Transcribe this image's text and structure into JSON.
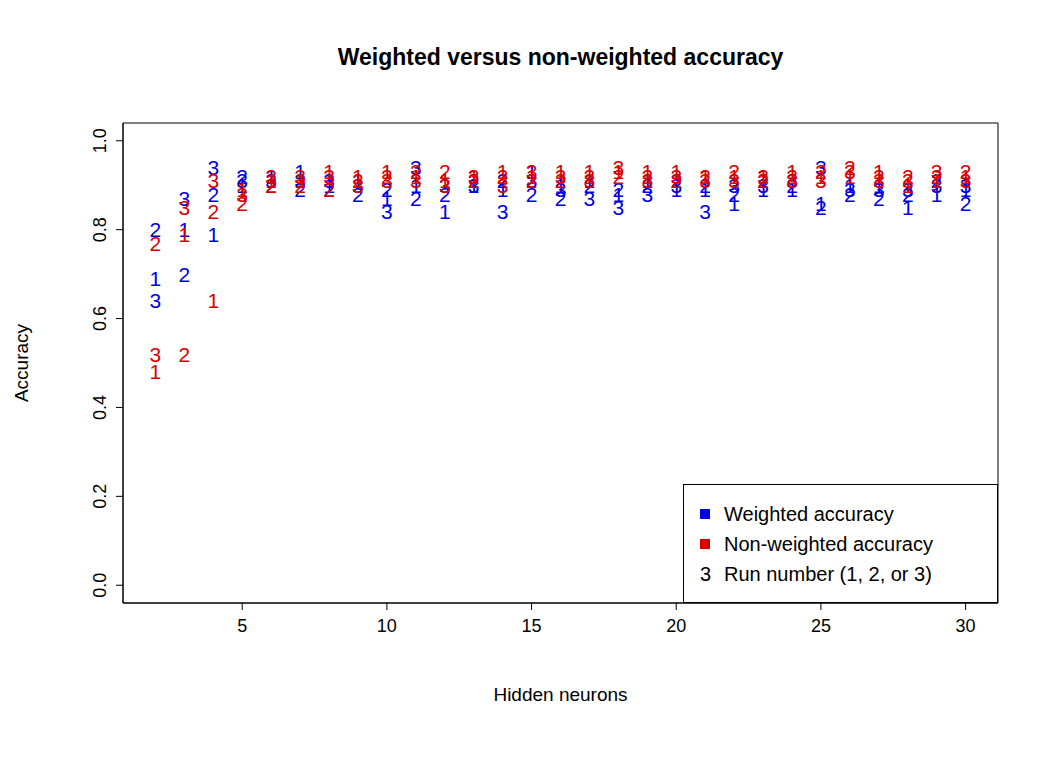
{
  "chart_data": {
    "type": "scatter",
    "title": "Weighted versus non-weighted accuracy",
    "x_label": "Hidden neurons",
    "y_label": "Accuracy",
    "x": [
      2,
      3,
      4,
      5,
      6,
      7,
      8,
      9,
      10,
      11,
      12,
      13,
      14,
      15,
      16,
      17,
      18,
      19,
      20,
      21,
      22,
      23,
      24,
      25,
      26,
      27,
      28,
      29,
      30
    ],
    "xlim": [
      0.88,
      31.12
    ],
    "xticks": [
      5,
      10,
      15,
      20,
      25,
      30
    ],
    "ylim": [
      -0.04,
      1.04
    ],
    "yticks": [
      {
        "value": 0,
        "label": "0.0"
      },
      {
        "value": 0.2,
        "label": "0.2"
      },
      {
        "value": 0.4,
        "label": "0.4"
      },
      {
        "value": 0.6,
        "label": "0.6"
      },
      {
        "value": 0.8,
        "label": "0.8"
      },
      {
        "value": 1,
        "label": "1.0"
      }
    ],
    "marker": "run_number",
    "legend": "bottom right",
    "legend_note": {
      "symbol": "3",
      "label": "Run number (1, 2, or 3)"
    },
    "series": [
      {
        "name": "Weighted accuracy",
        "color": "#0000e6",
        "runs": [
          {
            "run": 1,
            "values": [
              0.69,
              0.8,
              0.79,
              0.9,
              0.92,
              0.93,
              0.9,
              0.91,
              0.87,
              0.9,
              0.84,
              0.9,
              0.89,
              0.93,
              0.9,
              0.91,
              0.88,
              0.91,
              0.89,
              0.89,
              0.86,
              0.89,
              0.89,
              0.86,
              0.9,
              0.9,
              0.85,
              0.88,
              0.89
            ]
          },
          {
            "run": 2,
            "values": [
              0.8,
              0.7,
              0.88,
              0.92,
              0.9,
              0.89,
              0.89,
              0.88,
              0.89,
              0.87,
              0.88,
              0.91,
              0.91,
              0.88,
              0.87,
              0.9,
              0.89,
              0.9,
              0.91,
              0.9,
              0.88,
              0.91,
              0.9,
              0.85,
              0.88,
              0.87,
              0.88,
              0.91,
              0.86
            ]
          },
          {
            "run": 3,
            "values": [
              0.64,
              0.87,
              0.94,
              0.91,
              0.91,
              0.91,
              0.91,
              0.9,
              0.84,
              0.94,
              0.9,
              0.9,
              0.84,
              0.91,
              0.89,
              0.87,
              0.85,
              0.88,
              0.9,
              0.84,
              0.9,
              0.9,
              0.91,
              0.94,
              0.89,
              0.89,
              0.89,
              0.9,
              0.9
            ]
          }
        ]
      },
      {
        "name": "Non-weighted accuracy",
        "color": "#dd0000",
        "runs": [
          {
            "run": 1,
            "values": [
              0.48,
              0.79,
              0.64,
              0.89,
              0.91,
              0.91,
              0.93,
              0.92,
              0.93,
              0.92,
              0.91,
              0.92,
              0.93,
              0.92,
              0.93,
              0.93,
              0.93,
              0.93,
              0.93,
              0.92,
              0.92,
              0.92,
              0.93,
              0.92,
              0.92,
              0.93,
              0.9,
              0.91,
              0.92
            ]
          },
          {
            "run": 2,
            "values": [
              0.77,
              0.52,
              0.84,
              0.86,
              0.9,
              0.9,
              0.89,
              0.91,
              0.92,
              0.93,
              0.93,
              0.91,
              0.92,
              0.91,
              0.91,
              0.92,
              0.92,
              0.92,
              0.91,
              0.92,
              0.93,
              0.91,
              0.92,
              0.93,
              0.94,
              0.92,
              0.92,
              0.92,
              0.93
            ]
          },
          {
            "run": 3,
            "values": [
              0.52,
              0.85,
              0.91,
              0.88,
              0.92,
              0.92,
              0.92,
              0.9,
              0.91,
              0.91,
              0.9,
              0.92,
              0.9,
              0.93,
              0.92,
              0.91,
              0.94,
              0.91,
              0.92,
              0.91,
              0.91,
              0.92,
              0.91,
              0.91,
              0.93,
              0.91,
              0.91,
              0.93,
              0.91
            ]
          }
        ]
      }
    ]
  }
}
